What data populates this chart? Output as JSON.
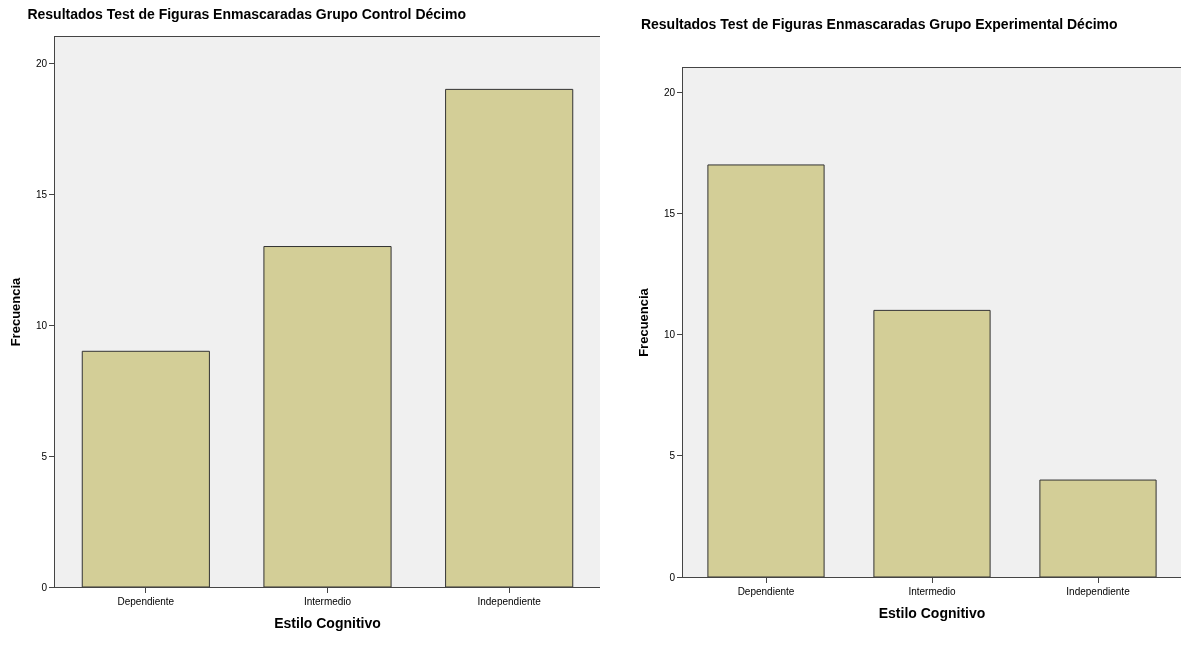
{
  "chart_data": [
    {
      "type": "bar",
      "title": "Resultados Test de Figuras Enmascaradas Grupo Control Décimo",
      "xlabel": "Estilo Cognitivo",
      "ylabel": "Frecuencia",
      "categories": [
        "Dependiente",
        "Intermedio",
        "Independiente"
      ],
      "values": [
        9,
        13,
        19
      ],
      "color": "#d3ce97",
      "ylim": [
        0,
        21
      ],
      "yticks": [
        0,
        5,
        10,
        15,
        20
      ]
    },
    {
      "type": "bar",
      "title": "Resultados Test de Figuras Enmascaradas Grupo Experimental Décimo",
      "xlabel": "Estilo Cognitivo",
      "ylabel": "Frecuencia",
      "categories": [
        "Dependiente",
        "Intermedio",
        "Independiente"
      ],
      "values": [
        17,
        11,
        4
      ],
      "color": "#d3ce97",
      "ylim": [
        0,
        21
      ],
      "yticks": [
        0,
        5,
        10,
        15,
        20
      ]
    }
  ]
}
